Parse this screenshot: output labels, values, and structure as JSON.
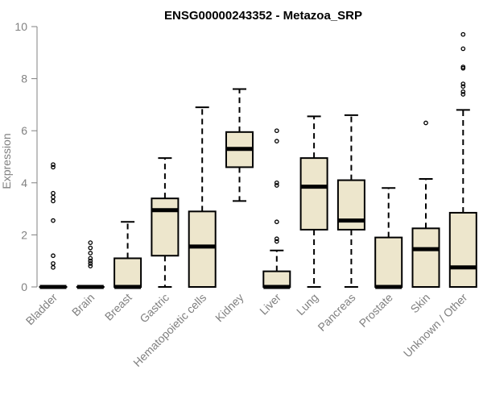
{
  "chart_data": {
    "type": "boxplot",
    "title": "ENSG00000243352 - Metazoa_SRP",
    "xlabel": "",
    "ylabel": "Expression",
    "ylim": [
      0,
      10
    ],
    "yticks": [
      0,
      2,
      4,
      6,
      8,
      10
    ],
    "box_fill": "#ede6cc",
    "categories": [
      "Bladder",
      "Brain",
      "Breast",
      "Gastric",
      "Hematopoietic cells",
      "Kidney",
      "Liver",
      "Lung",
      "Pancreas",
      "Prostate",
      "Skin",
      "Unknown / Other"
    ],
    "boxes": [
      {
        "name": "Bladder",
        "whisker_low": 0,
        "q1": 0,
        "median": 0,
        "q3": 0,
        "whisker_high": 0,
        "outliers": [
          0.75,
          0.9,
          1.2,
          2.55,
          3.3,
          3.45,
          3.6,
          4.6,
          4.7
        ]
      },
      {
        "name": "Brain",
        "whisker_low": 0,
        "q1": 0,
        "median": 0,
        "q3": 0,
        "whisker_high": 0,
        "outliers": [
          0.8,
          0.9,
          1.0,
          1.1,
          1.3,
          1.5,
          1.7
        ]
      },
      {
        "name": "Breast",
        "whisker_low": 0,
        "q1": 0,
        "median": 0,
        "q3": 1.1,
        "whisker_high": 2.5,
        "outliers": []
      },
      {
        "name": "Gastric",
        "whisker_low": 0,
        "q1": 1.2,
        "median": 2.95,
        "q3": 3.4,
        "whisker_high": 4.95,
        "outliers": []
      },
      {
        "name": "Hematopoietic cells",
        "whisker_low": 0,
        "q1": 0,
        "median": 1.55,
        "q3": 2.9,
        "whisker_high": 6.9,
        "outliers": []
      },
      {
        "name": "Kidney",
        "whisker_low": 3.3,
        "q1": 4.6,
        "median": 5.3,
        "q3": 5.95,
        "whisker_high": 7.6,
        "outliers": []
      },
      {
        "name": "Liver",
        "whisker_low": 0,
        "q1": 0,
        "median": 0,
        "q3": 0.6,
        "whisker_high": 1.4,
        "outliers": [
          1.75,
          1.85,
          2.5,
          3.9,
          4.0,
          5.6,
          6.0
        ]
      },
      {
        "name": "Lung",
        "whisker_low": 0,
        "q1": 2.2,
        "median": 3.85,
        "q3": 4.95,
        "whisker_high": 6.55,
        "outliers": []
      },
      {
        "name": "Pancreas",
        "whisker_low": 0,
        "q1": 2.2,
        "median": 2.55,
        "q3": 4.1,
        "whisker_high": 6.6,
        "outliers": []
      },
      {
        "name": "Prostate",
        "whisker_low": 0,
        "q1": 0,
        "median": 0,
        "q3": 1.9,
        "whisker_high": 3.8,
        "outliers": []
      },
      {
        "name": "Skin",
        "whisker_low": 0,
        "q1": 0,
        "median": 1.45,
        "q3": 2.25,
        "whisker_high": 4.15,
        "outliers": [
          6.3
        ]
      },
      {
        "name": "Unknown / Other",
        "whisker_low": 0,
        "q1": 0,
        "median": 0.75,
        "q3": 2.85,
        "whisker_high": 6.8,
        "outliers": [
          7.4,
          7.5,
          7.7,
          7.8,
          8.4,
          8.45,
          9.15,
          9.7
        ]
      }
    ]
  }
}
